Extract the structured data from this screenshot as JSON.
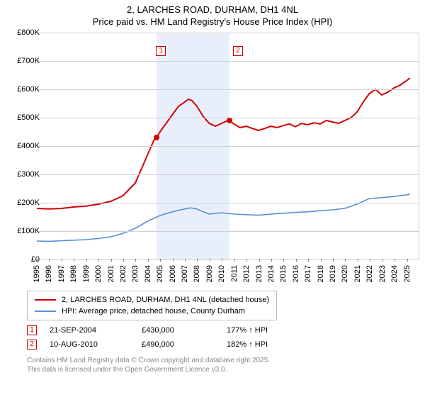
{
  "header": {
    "line1": "2, LARCHES ROAD, DURHAM, DH1 4NL",
    "line2": "Price paid vs. HM Land Registry's House Price Index (HPI)"
  },
  "chart": {
    "type": "line",
    "background_color": "#ffffff",
    "grid_color": "#d0d0d0",
    "font_size_axis": 11,
    "x_range": [
      1995,
      2026
    ],
    "y_range": [
      0,
      800000
    ],
    "y_ticks": [
      0,
      100000,
      200000,
      300000,
      400000,
      500000,
      600000,
      700000,
      800000
    ],
    "y_tick_labels": [
      "£0",
      "£100K",
      "£200K",
      "£300K",
      "£400K",
      "£500K",
      "£600K",
      "£700K",
      "£800K"
    ],
    "x_ticks": [
      1995,
      1996,
      1997,
      1998,
      1999,
      2000,
      2001,
      2002,
      2003,
      2004,
      2005,
      2006,
      2007,
      2008,
      2009,
      2010,
      2011,
      2012,
      2013,
      2014,
      2015,
      2016,
      2017,
      2018,
      2019,
      2020,
      2021,
      2022,
      2023,
      2024,
      2025
    ],
    "shade_band": {
      "start": 2004.72,
      "end": 2010.61,
      "color": "#e8effa"
    },
    "series": [
      {
        "name": "price_paid",
        "label": "2, LARCHES ROAD, DURHAM, DH1 4NL (detached house)",
        "color": "#d00000",
        "line_width": 2,
        "points": [
          [
            1995.0,
            180000
          ],
          [
            1996.0,
            178000
          ],
          [
            1997.0,
            180000
          ],
          [
            1998.0,
            185000
          ],
          [
            1999.0,
            188000
          ],
          [
            2000.0,
            195000
          ],
          [
            2001.0,
            205000
          ],
          [
            2002.0,
            225000
          ],
          [
            2003.0,
            270000
          ],
          [
            2003.5,
            320000
          ],
          [
            2004.0,
            370000
          ],
          [
            2004.5,
            420000
          ],
          [
            2004.72,
            430000
          ],
          [
            2005.0,
            450000
          ],
          [
            2005.5,
            480000
          ],
          [
            2006.0,
            510000
          ],
          [
            2006.5,
            540000
          ],
          [
            2007.0,
            555000
          ],
          [
            2007.3,
            565000
          ],
          [
            2007.6,
            560000
          ],
          [
            2008.0,
            540000
          ],
          [
            2008.5,
            505000
          ],
          [
            2009.0,
            480000
          ],
          [
            2009.5,
            470000
          ],
          [
            2010.0,
            480000
          ],
          [
            2010.5,
            490000
          ],
          [
            2010.61,
            490000
          ],
          [
            2011.0,
            478000
          ],
          [
            2011.5,
            465000
          ],
          [
            2012.0,
            470000
          ],
          [
            2012.5,
            462000
          ],
          [
            2013.0,
            455000
          ],
          [
            2013.5,
            462000
          ],
          [
            2014.0,
            470000
          ],
          [
            2014.5,
            465000
          ],
          [
            2015.0,
            472000
          ],
          [
            2015.5,
            478000
          ],
          [
            2016.0,
            468000
          ],
          [
            2016.5,
            480000
          ],
          [
            2017.0,
            475000
          ],
          [
            2017.5,
            482000
          ],
          [
            2018.0,
            478000
          ],
          [
            2018.5,
            490000
          ],
          [
            2019.0,
            485000
          ],
          [
            2019.5,
            480000
          ],
          [
            2020.0,
            490000
          ],
          [
            2020.5,
            500000
          ],
          [
            2021.0,
            520000
          ],
          [
            2021.5,
            555000
          ],
          [
            2022.0,
            585000
          ],
          [
            2022.5,
            600000
          ],
          [
            2023.0,
            580000
          ],
          [
            2023.5,
            590000
          ],
          [
            2024.0,
            605000
          ],
          [
            2024.5,
            615000
          ],
          [
            2025.0,
            630000
          ],
          [
            2025.3,
            640000
          ]
        ]
      },
      {
        "name": "hpi",
        "label": "HPI: Average price, detached house, County Durham",
        "color": "#5b8fd6",
        "line_width": 1.6,
        "points": [
          [
            1995.0,
            65000
          ],
          [
            1996.0,
            64000
          ],
          [
            1997.0,
            66000
          ],
          [
            1998.0,
            68000
          ],
          [
            1999.0,
            70000
          ],
          [
            2000.0,
            74000
          ],
          [
            2001.0,
            80000
          ],
          [
            2002.0,
            92000
          ],
          [
            2003.0,
            110000
          ],
          [
            2004.0,
            135000
          ],
          [
            2005.0,
            155000
          ],
          [
            2006.0,
            168000
          ],
          [
            2007.0,
            178000
          ],
          [
            2007.5,
            182000
          ],
          [
            2008.0,
            178000
          ],
          [
            2008.5,
            168000
          ],
          [
            2009.0,
            160000
          ],
          [
            2010.0,
            165000
          ],
          [
            2011.0,
            160000
          ],
          [
            2012.0,
            158000
          ],
          [
            2013.0,
            156000
          ],
          [
            2014.0,
            160000
          ],
          [
            2015.0,
            163000
          ],
          [
            2016.0,
            166000
          ],
          [
            2017.0,
            168000
          ],
          [
            2018.0,
            172000
          ],
          [
            2019.0,
            175000
          ],
          [
            2020.0,
            180000
          ],
          [
            2021.0,
            195000
          ],
          [
            2022.0,
            215000
          ],
          [
            2023.0,
            218000
          ],
          [
            2024.0,
            222000
          ],
          [
            2025.0,
            228000
          ],
          [
            2025.3,
            230000
          ]
        ]
      }
    ],
    "sale_markers": [
      {
        "n": "1",
        "x": 2004.72,
        "y": 430000,
        "label_dx": -1,
        "label_y": 752000,
        "color": "#d00000"
      },
      {
        "n": "2",
        "x": 2010.61,
        "y": 490000,
        "label_dx": 5,
        "label_y": 752000,
        "color": "#d00000"
      }
    ]
  },
  "legend": {
    "items": [
      {
        "color": "#d00000",
        "width": 2,
        "label": "2, LARCHES ROAD, DURHAM, DH1 4NL (detached house)"
      },
      {
        "color": "#5b8fd6",
        "width": 1.6,
        "label": "HPI: Average price, detached house, County Durham"
      }
    ]
  },
  "sales": [
    {
      "n": "1",
      "date": "21-SEP-2004",
      "price": "£430,000",
      "hpi": "177% ↑ HPI"
    },
    {
      "n": "2",
      "date": "10-AUG-2010",
      "price": "£490,000",
      "hpi": "182% ↑ HPI"
    }
  ],
  "footer": {
    "line1": "Contains HM Land Registry data © Crown copyright and database right 2025.",
    "line2": "This data is licensed under the Open Government Licence v3.0."
  }
}
